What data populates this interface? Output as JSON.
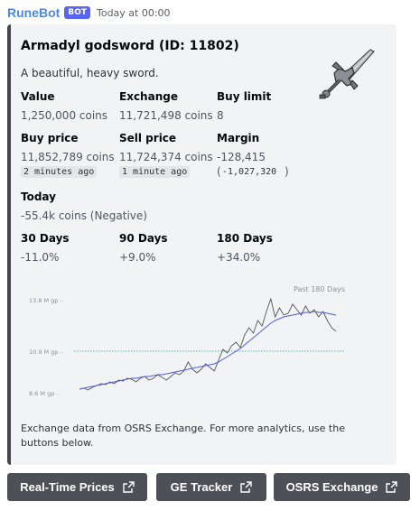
{
  "message": {
    "bot_name": "RuneBot",
    "badge": "BOT",
    "timestamp": "Today at 00:00"
  },
  "embed": {
    "title": "Armadyl godsword (ID: 11802)",
    "description": "A beautiful, heavy sword.",
    "thumbnail_icon": "armadyl-godsword-icon",
    "fields": {
      "value": {
        "name": "Value",
        "value": "1,250,000 coins"
      },
      "exchange": {
        "name": "Exchange",
        "value": "11,721,498 coins"
      },
      "buy_limit": {
        "name": "Buy limit",
        "value": "8"
      },
      "buy_price": {
        "name": "Buy price",
        "value": "11,852,789 coins",
        "age": "2 minutes ago"
      },
      "sell_price": {
        "name": "Sell price",
        "value": "11,724,374 coins",
        "age": "1 minute ago"
      },
      "margin": {
        "name": "Margin",
        "value": "-128,415",
        "paren_open": "(",
        "detail": "-1,027,320",
        "paren_close": ")"
      },
      "today": {
        "name": "Today",
        "value": "-55.4k coins (Negative)"
      },
      "days30": {
        "name": "30 Days",
        "value": "-11.0%"
      },
      "days90": {
        "name": "90 Days",
        "value": "+9.0%"
      },
      "days180": {
        "name": "180 Days",
        "value": "+34.0%"
      }
    },
    "footer": "Exchange data from OSRS Exchange. For more analytics, use the buttons below."
  },
  "chart_data": {
    "type": "line",
    "title": "Past 180 Days",
    "xlabel": "",
    "ylabel": "",
    "y_ticks": [
      "13.8 M gp -",
      "10.9 M gp -",
      "8.6 M gp -"
    ],
    "y_tick_values": [
      13.8,
      10.9,
      8.6
    ],
    "ylim": [
      8.6,
      13.8
    ],
    "reference_line": 10.9,
    "grid": false,
    "series": [
      {
        "color": "#555555",
        "values": [
          8.8,
          8.85,
          8.75,
          8.9,
          9.0,
          9.1,
          9.05,
          9.2,
          9.1,
          9.3,
          9.25,
          9.4,
          9.35,
          9.2,
          9.4,
          9.5,
          9.3,
          9.4,
          9.6,
          9.45,
          9.3,
          9.5,
          9.7,
          9.6,
          9.8,
          10.3,
          9.9,
          9.7,
          9.9,
          10.2,
          10.0,
          9.8,
          10.4,
          11.0,
          10.8,
          11.2,
          11.4,
          11.1,
          11.8,
          12.2,
          11.9,
          12.6,
          12.3,
          13.1,
          13.8,
          12.8,
          13.3,
          12.9,
          13.0,
          13.5,
          13.2,
          12.9,
          13.4,
          13.0,
          13.2,
          12.8,
          13.1,
          12.6,
          12.2,
          12.0
        ]
      },
      {
        "color": "#4f5fd6",
        "values": [
          8.8,
          8.85,
          8.9,
          8.95,
          9.0,
          9.05,
          9.1,
          9.15,
          9.2,
          9.25,
          9.3,
          9.35,
          9.4,
          9.4,
          9.45,
          9.5,
          9.5,
          9.55,
          9.6,
          9.6,
          9.65,
          9.7,
          9.75,
          9.8,
          9.85,
          9.9,
          9.95,
          10.0,
          10.05,
          10.1,
          10.15,
          10.2,
          10.3,
          10.45,
          10.6,
          10.75,
          10.9,
          11.05,
          11.25,
          11.45,
          11.65,
          11.85,
          12.05,
          12.25,
          12.45,
          12.6,
          12.7,
          12.8,
          12.85,
          12.9,
          12.95,
          13.0,
          13.05,
          13.05,
          13.1,
          13.05,
          13.05,
          13.0,
          12.95,
          12.9
        ]
      }
    ]
  },
  "buttons": [
    {
      "label": "Real-Time Prices",
      "icon": "external-link-icon"
    },
    {
      "label": "GE Tracker",
      "icon": "external-link-icon"
    },
    {
      "label": "OSRS Exchange",
      "icon": "external-link-icon"
    }
  ]
}
